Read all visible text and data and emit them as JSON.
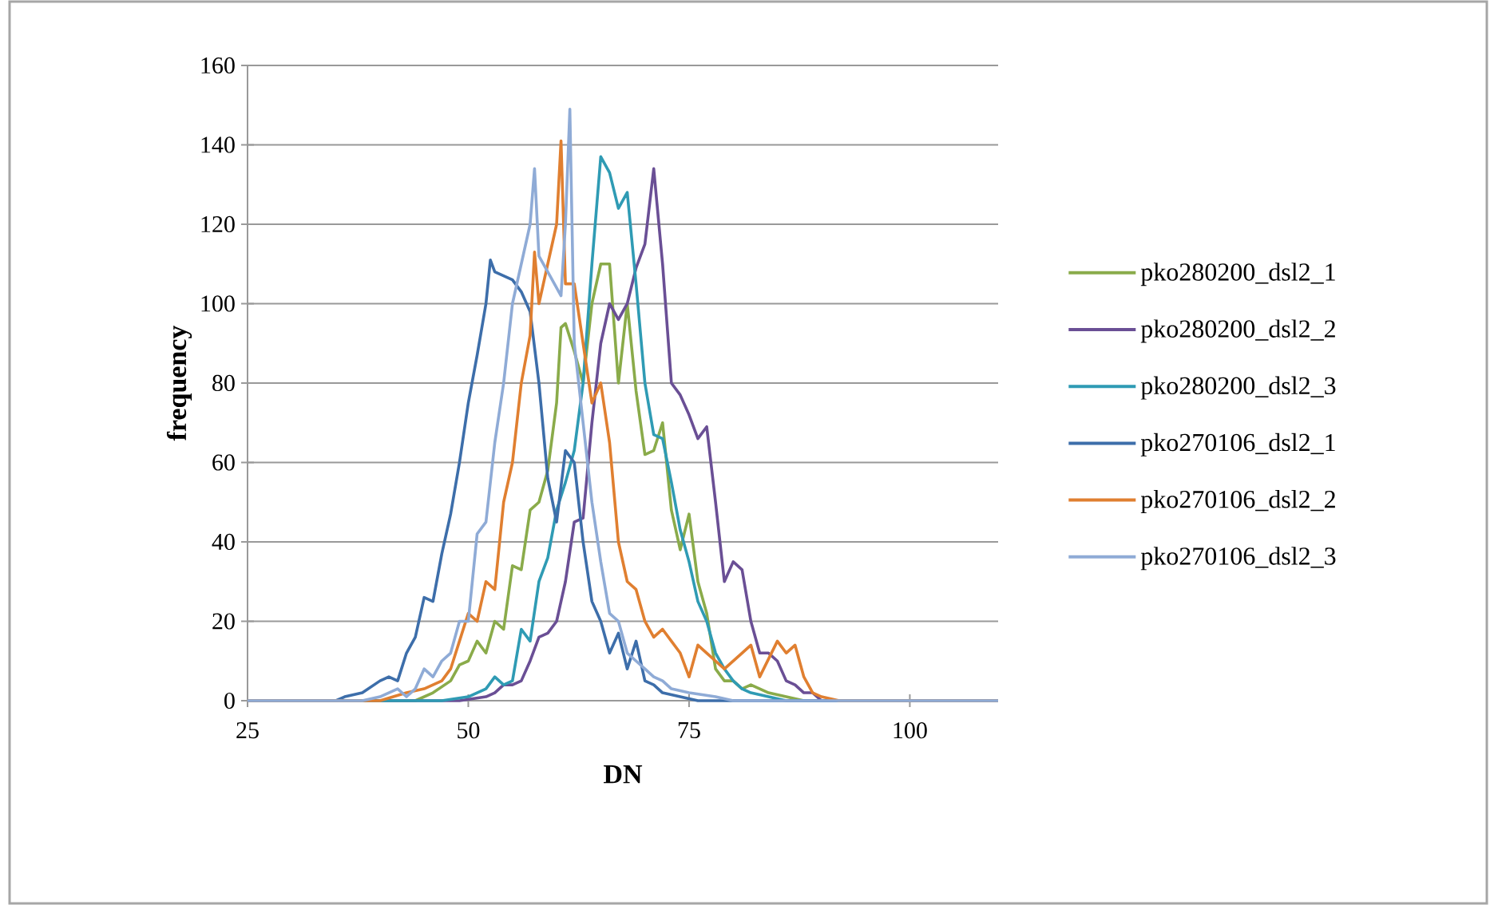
{
  "chart_data": {
    "type": "line",
    "xlabel": "DN",
    "ylabel": "frequency",
    "xlim": [
      25,
      110
    ],
    "xticks": [
      25,
      50,
      75,
      100
    ],
    "ylim": [
      0,
      160
    ],
    "yticks": [
      0,
      20,
      40,
      60,
      80,
      100,
      120,
      140,
      160
    ],
    "grid": "y",
    "legend": "right",
    "marker": "none",
    "line_style": "solid",
    "series": [
      {
        "name": "pko280200_dsl2_1",
        "color": "#8aab4a",
        "x": [
          25,
          44,
          46,
          48,
          49,
          50,
          51,
          52,
          53,
          54,
          55,
          56,
          57,
          58,
          59,
          60,
          60.5,
          61,
          62,
          63,
          64,
          65,
          66,
          67,
          68,
          69,
          70,
          71,
          72,
          73,
          74,
          75,
          76,
          77,
          78,
          79,
          80,
          81,
          82,
          84,
          86,
          88,
          110
        ],
        "values": [
          0,
          0,
          2,
          5,
          9,
          10,
          15,
          12,
          20,
          18,
          34,
          33,
          48,
          50,
          58,
          75,
          94,
          95,
          88,
          80,
          100,
          110,
          110,
          80,
          100,
          78,
          62,
          63,
          70,
          48,
          38,
          47,
          30,
          22,
          8,
          5,
          5,
          3,
          4,
          2,
          1,
          0,
          0
        ]
      },
      {
        "name": "pko280200_dsl2_2",
        "color": "#6a4f95",
        "x": [
          25,
          49,
          52,
          53,
          54,
          55,
          56,
          57,
          58,
          59,
          60,
          61,
          62,
          63,
          64,
          65,
          66,
          67,
          68,
          69,
          70,
          71,
          72,
          73,
          74,
          75,
          76,
          77,
          78,
          79,
          80,
          81,
          82,
          83,
          84,
          85,
          86,
          87,
          88,
          89,
          90,
          110
        ],
        "values": [
          0,
          0,
          1,
          2,
          4,
          4,
          5,
          10,
          16,
          17,
          20,
          30,
          45,
          46,
          70,
          90,
          100,
          96,
          100,
          109,
          115,
          134,
          110,
          80,
          77,
          72,
          66,
          69,
          50,
          30,
          35,
          33,
          20,
          12,
          12,
          10,
          5,
          4,
          2,
          2,
          0,
          0
        ]
      },
      {
        "name": "pko280200_dsl2_3",
        "color": "#2f9bb4",
        "x": [
          25,
          47,
          50,
          52,
          53,
          54,
          55,
          56,
          57,
          58,
          59,
          60,
          61,
          62,
          63,
          64,
          65,
          66,
          67,
          68,
          69,
          70,
          71,
          72,
          73,
          74,
          75,
          76,
          77,
          78,
          79,
          80,
          81,
          82,
          84,
          86,
          110
        ],
        "values": [
          0,
          0,
          1,
          3,
          6,
          4,
          5,
          18,
          15,
          30,
          36,
          48,
          55,
          63,
          80,
          110,
          137,
          133,
          124,
          128,
          105,
          80,
          67,
          66,
          55,
          43,
          35,
          25,
          20,
          12,
          8,
          5,
          3,
          2,
          1,
          0,
          0
        ]
      },
      {
        "name": "pko270106_dsl2_1",
        "color": "#3d6eaa",
        "x": [
          25,
          35,
          36,
          38,
          40,
          41,
          42,
          43,
          44,
          45,
          46,
          47,
          48,
          49,
          50,
          51,
          52,
          52.5,
          53,
          55,
          56,
          57,
          58,
          59,
          60,
          61,
          62,
          63,
          64,
          65,
          66,
          67,
          68,
          69,
          70,
          71,
          72,
          74,
          76,
          110
        ],
        "values": [
          0,
          0,
          1,
          2,
          5,
          6,
          5,
          12,
          16,
          26,
          25,
          37,
          47,
          60,
          75,
          87,
          100,
          111,
          108,
          106,
          103,
          98,
          80,
          56,
          45,
          63,
          60,
          40,
          25,
          20,
          12,
          17,
          8,
          15,
          5,
          4,
          2,
          1,
          0,
          0
        ]
      },
      {
        "name": "pko270106_dsl2_2",
        "color": "#e07f30",
        "x": [
          25,
          40,
          43,
          45,
          47,
          48,
          49,
          50,
          51,
          52,
          53,
          54,
          55,
          56,
          57,
          57.5,
          58,
          59,
          60,
          60.5,
          61,
          62,
          63,
          64,
          65,
          66,
          67,
          68,
          69,
          70,
          71,
          72,
          73,
          74,
          75,
          76,
          77,
          78,
          79,
          80,
          81,
          82,
          83,
          85,
          86,
          87,
          88,
          89,
          90,
          92,
          110
        ],
        "values": [
          0,
          0,
          2,
          3,
          5,
          8,
          15,
          22,
          20,
          30,
          28,
          50,
          60,
          80,
          92,
          113,
          100,
          110,
          120,
          141,
          105,
          105,
          90,
          75,
          80,
          65,
          40,
          30,
          28,
          20,
          16,
          18,
          15,
          12,
          6,
          14,
          12,
          10,
          8,
          10,
          12,
          14,
          6,
          15,
          12,
          14,
          6,
          2,
          1,
          0,
          0
        ]
      },
      {
        "name": "pko270106_dsl2_3",
        "color": "#8fabd6",
        "x": [
          25,
          38,
          40,
          42,
          43,
          44,
          45,
          46,
          47,
          48,
          49,
          50,
          51,
          52,
          53,
          54,
          55,
          56,
          57,
          57.5,
          58,
          59,
          60,
          60.5,
          61,
          61.5,
          62,
          63,
          64,
          65,
          66,
          67,
          68,
          69,
          70,
          71,
          72,
          73,
          75,
          78,
          80,
          110
        ],
        "values": [
          0,
          0,
          1,
          3,
          1,
          3,
          8,
          6,
          10,
          12,
          20,
          20,
          42,
          45,
          65,
          80,
          100,
          110,
          120,
          134,
          112,
          108,
          104,
          102,
          120,
          149,
          90,
          70,
          50,
          35,
          22,
          20,
          12,
          10,
          8,
          6,
          5,
          3,
          2,
          1,
          0,
          0
        ]
      }
    ]
  }
}
